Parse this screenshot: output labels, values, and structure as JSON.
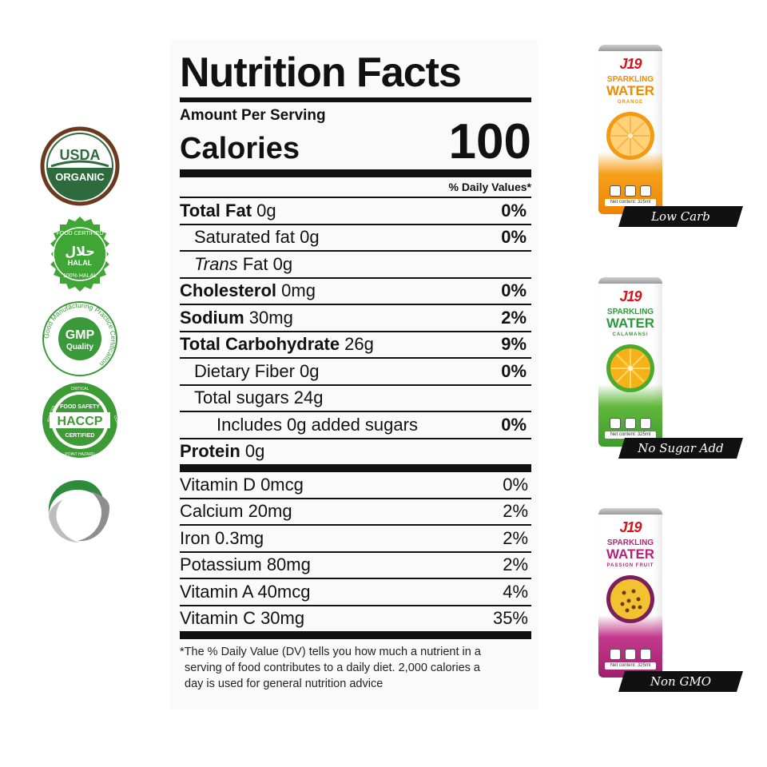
{
  "badges": {
    "usda": {
      "line1": "USDA",
      "line2": "ORGANIC"
    },
    "halal": {
      "top": "FOOD CERTIFIED",
      "center_ar": "حلال",
      "center": "HALAL",
      "bottom": "100% HALAL"
    },
    "gmp": {
      "ring": "Good Manufacturing Practice Certification",
      "line1": "GMP",
      "line2": "Quality"
    },
    "haccp": {
      "top": "FOOD SAFETY",
      "center": "HACCP",
      "bottom": "CERTIFIED",
      "ring_left": "ANALYSIS",
      "ring_right": "CONTROL",
      "ring_top": "CRITICAL",
      "ring_bottom": "POINT HAZARD"
    }
  },
  "label": {
    "title": "Nutrition Facts",
    "amount_per_serving": "Amount Per Serving",
    "calories_label": "Calories",
    "calories_value": "100",
    "dv_header": "% Daily Values*",
    "nutrients": [
      {
        "name": "Total Fat",
        "amount": " 0g",
        "pct": "0%"
      },
      {
        "name": "Saturated fat 0g",
        "amount": "",
        "pct": "0%"
      },
      {
        "name_italic": "Trans",
        "name": " Fat 0g",
        "amount": "",
        "pct": ""
      },
      {
        "name": "Cholesterol",
        "amount": " 0mg",
        "pct": "0%"
      },
      {
        "name": "Sodium",
        "amount": " 30mg",
        "pct": "2%"
      },
      {
        "name": "Total Carbohydrate",
        "amount": " 26g",
        "pct": "9%"
      },
      {
        "name": "Dietary Fiber 0g",
        "amount": "",
        "pct": "0%"
      },
      {
        "name": "Total sugars 24g",
        "amount": "",
        "pct": ""
      },
      {
        "name": "Includes 0g added sugars",
        "amount": "",
        "pct": "0%"
      },
      {
        "name": "Protein",
        "amount": " 0g",
        "pct": ""
      }
    ],
    "vitamins": [
      {
        "name": "Vitamin D 0mcg",
        "pct": "0%"
      },
      {
        "name": "Calcium 20mg",
        "pct": "2%"
      },
      {
        "name": "Iron 0.3mg",
        "pct": "2%"
      },
      {
        "name": "Potassium 80mg",
        "pct": "2%"
      },
      {
        "name": "Vitamin A 40mcg",
        "pct": "4%"
      },
      {
        "name": "Vitamin C 30mg",
        "pct": "35%"
      }
    ],
    "footnote": [
      "*The % Daily Value (DV) tells you how much a nutrient in a",
      "serving of food contributes to a daily diet. 2,000 calories a",
      "day is used for general nutrition advice"
    ]
  },
  "cans": [
    {
      "brand": "J19",
      "line1": "SPARKLING",
      "line2": "WATER",
      "flavor": "ORANGE",
      "net": "Net content: 325ml",
      "tag": "Low Carb"
    },
    {
      "brand": "J19",
      "line1": "SPARKLING",
      "line2": "WATER",
      "flavor": "CALAMANSI",
      "net": "Net content: 325ml",
      "tag": "No Sugar Add"
    },
    {
      "brand": "J19",
      "line1": "SPARKLING",
      "line2": "WATER",
      "flavor": "PASSION FRUIT",
      "net": "Net content: 325ml",
      "tag": "Non GMO"
    }
  ],
  "colors": {
    "usda_green": "#2e6b3c",
    "usda_brown": "#6b3a1e",
    "halal_green": "#3fa535",
    "gmp_green": "#3a9a3a",
    "haccp_green": "#3d9b35",
    "label_ink": "#111111",
    "orange": "#f08a00",
    "green": "#3f9a2e",
    "magenta": "#a01f6e",
    "tag_bg": "#111111"
  }
}
